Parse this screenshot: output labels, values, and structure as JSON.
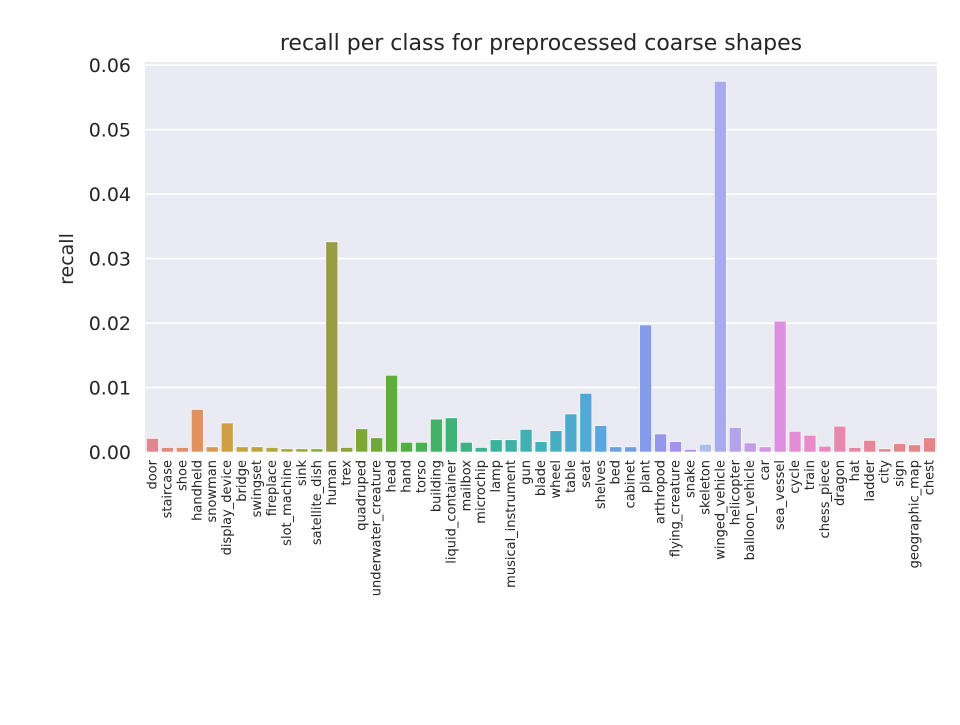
{
  "chart_data": {
    "type": "bar",
    "title": "recall per class for preprocessed coarse shapes",
    "xlabel": "",
    "ylabel": "recall",
    "ylim": [
      0,
      0.0605
    ],
    "yticks": [
      0.0,
      0.01,
      0.02,
      0.03,
      0.04,
      0.05,
      0.06
    ],
    "ytick_labels": [
      "0.00",
      "0.01",
      "0.02",
      "0.03",
      "0.04",
      "0.05",
      "0.06"
    ],
    "grid": true,
    "background": "#eaeaf2",
    "categories": [
      "door",
      "staircase",
      "shoe",
      "handheld",
      "snowman",
      "display_device",
      "bridge",
      "swingset",
      "fireplace",
      "slot_machine",
      "sink",
      "satellite_dish",
      "human",
      "trex",
      "quadruped",
      "underwater_creature",
      "head",
      "hand",
      "torso",
      "building",
      "liquid_container",
      "mailbox",
      "microchip",
      "lamp",
      "musical_instrument",
      "gun",
      "blade",
      "wheel",
      "table",
      "seat",
      "shelves",
      "bed",
      "cabinet",
      "plant",
      "arthropod",
      "flying_creature",
      "snake",
      "skeleton",
      "winged_vehicle",
      "helicopter",
      "balloon_vehicle",
      "car",
      "sea_vessel",
      "cycle",
      "train",
      "chess_piece",
      "dragon",
      "hat",
      "ladder",
      "city",
      "sign",
      "geographic_map",
      "chest"
    ],
    "values": [
      0.0021,
      0.0007,
      0.0007,
      0.0066,
      0.0008,
      0.0045,
      0.0008,
      0.0008,
      0.0007,
      0.0005,
      0.0005,
      0.0005,
      0.0326,
      0.0007,
      0.0036,
      0.0022,
      0.0119,
      0.0015,
      0.0015,
      0.0051,
      0.0053,
      0.0015,
      0.0007,
      0.0019,
      0.0019,
      0.0035,
      0.0016,
      0.0033,
      0.0059,
      0.0091,
      0.0041,
      0.0008,
      0.0008,
      0.0197,
      0.0028,
      0.0016,
      0.0004,
      0.0012,
      0.0575,
      0.0038,
      0.0014,
      0.0008,
      0.0203,
      0.0032,
      0.0026,
      0.0009,
      0.004,
      0.0007,
      0.0018,
      0.0005,
      0.0013,
      0.0011,
      0.0022
    ],
    "colors": [
      "#e1878f",
      "#e18a7e",
      "#e28d6e",
      "#e1915e",
      "#d99a4f",
      "#d09f45",
      "#c5a33e",
      "#bba53a",
      "#b0a837",
      "#a4ab34",
      "#98ad32",
      "#8aaf32",
      "#9a9c43",
      "#8ca33c",
      "#7ea836",
      "#6fab34",
      "#5fae37",
      "#4fb041",
      "#47b154",
      "#42b266",
      "#3fb375",
      "#3db383",
      "#3db38f",
      "#3db29b",
      "#3eb1a6",
      "#40b0b0",
      "#43afba",
      "#47adc3",
      "#4cabcd",
      "#52a9d6",
      "#5aa6de",
      "#66a2e4",
      "#749de8",
      "#849aeb",
      "#9496ec",
      "#a392ed",
      "#b28fed",
      "#b0bcf0",
      "#a7acec",
      "#b4a2ea",
      "#c39ce8",
      "#d196e4",
      "#dd90df",
      "#e48dd4",
      "#e88bc8",
      "#e889bc",
      "#e888b0",
      "#e787a5",
      "#e6869b",
      "#e58693",
      "#e5868d",
      "#e48689",
      "#e28687"
    ],
    "legend": "none"
  }
}
